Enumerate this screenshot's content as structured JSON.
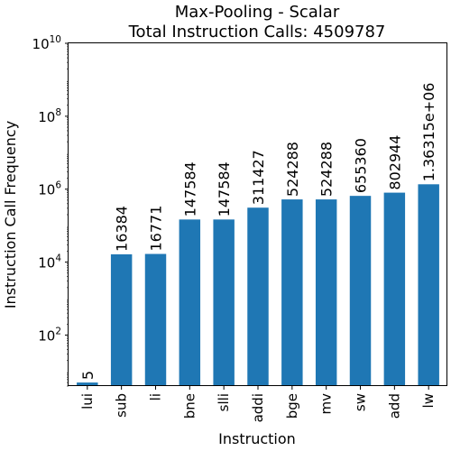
{
  "chart_data": {
    "type": "bar",
    "title": "Max-Pooling - Scalar",
    "subtitle": "Total Instruction Calls: 4509787",
    "xlabel": "Instruction",
    "ylabel": "Instruction Call Frequency",
    "yscale": "log",
    "ylim": [
      4,
      10000000000
    ],
    "grid": false,
    "bar_color": "#1f77b4",
    "categories": [
      "lui",
      "sub",
      "li",
      "bne",
      "slli",
      "addi",
      "bge",
      "mv",
      "sw",
      "add",
      "lw"
    ],
    "values": [
      5,
      16384,
      16771,
      147584,
      147584,
      311427,
      524288,
      524288,
      655360,
      802944,
      1363150
    ],
    "data_labels": [
      "5",
      "16384",
      "16771",
      "147584",
      "147584",
      "311427",
      "524288",
      "524288",
      "655360",
      "802944",
      "1.36315e+06"
    ],
    "y_ticks": [
      {
        "base": "10",
        "exp": "2",
        "value": 100
      },
      {
        "base": "10",
        "exp": "4",
        "value": 10000
      },
      {
        "base": "10",
        "exp": "6",
        "value": 1000000
      },
      {
        "base": "10",
        "exp": "8",
        "value": 100000000
      },
      {
        "base": "10",
        "exp": "10",
        "value": 10000000000
      }
    ]
  }
}
